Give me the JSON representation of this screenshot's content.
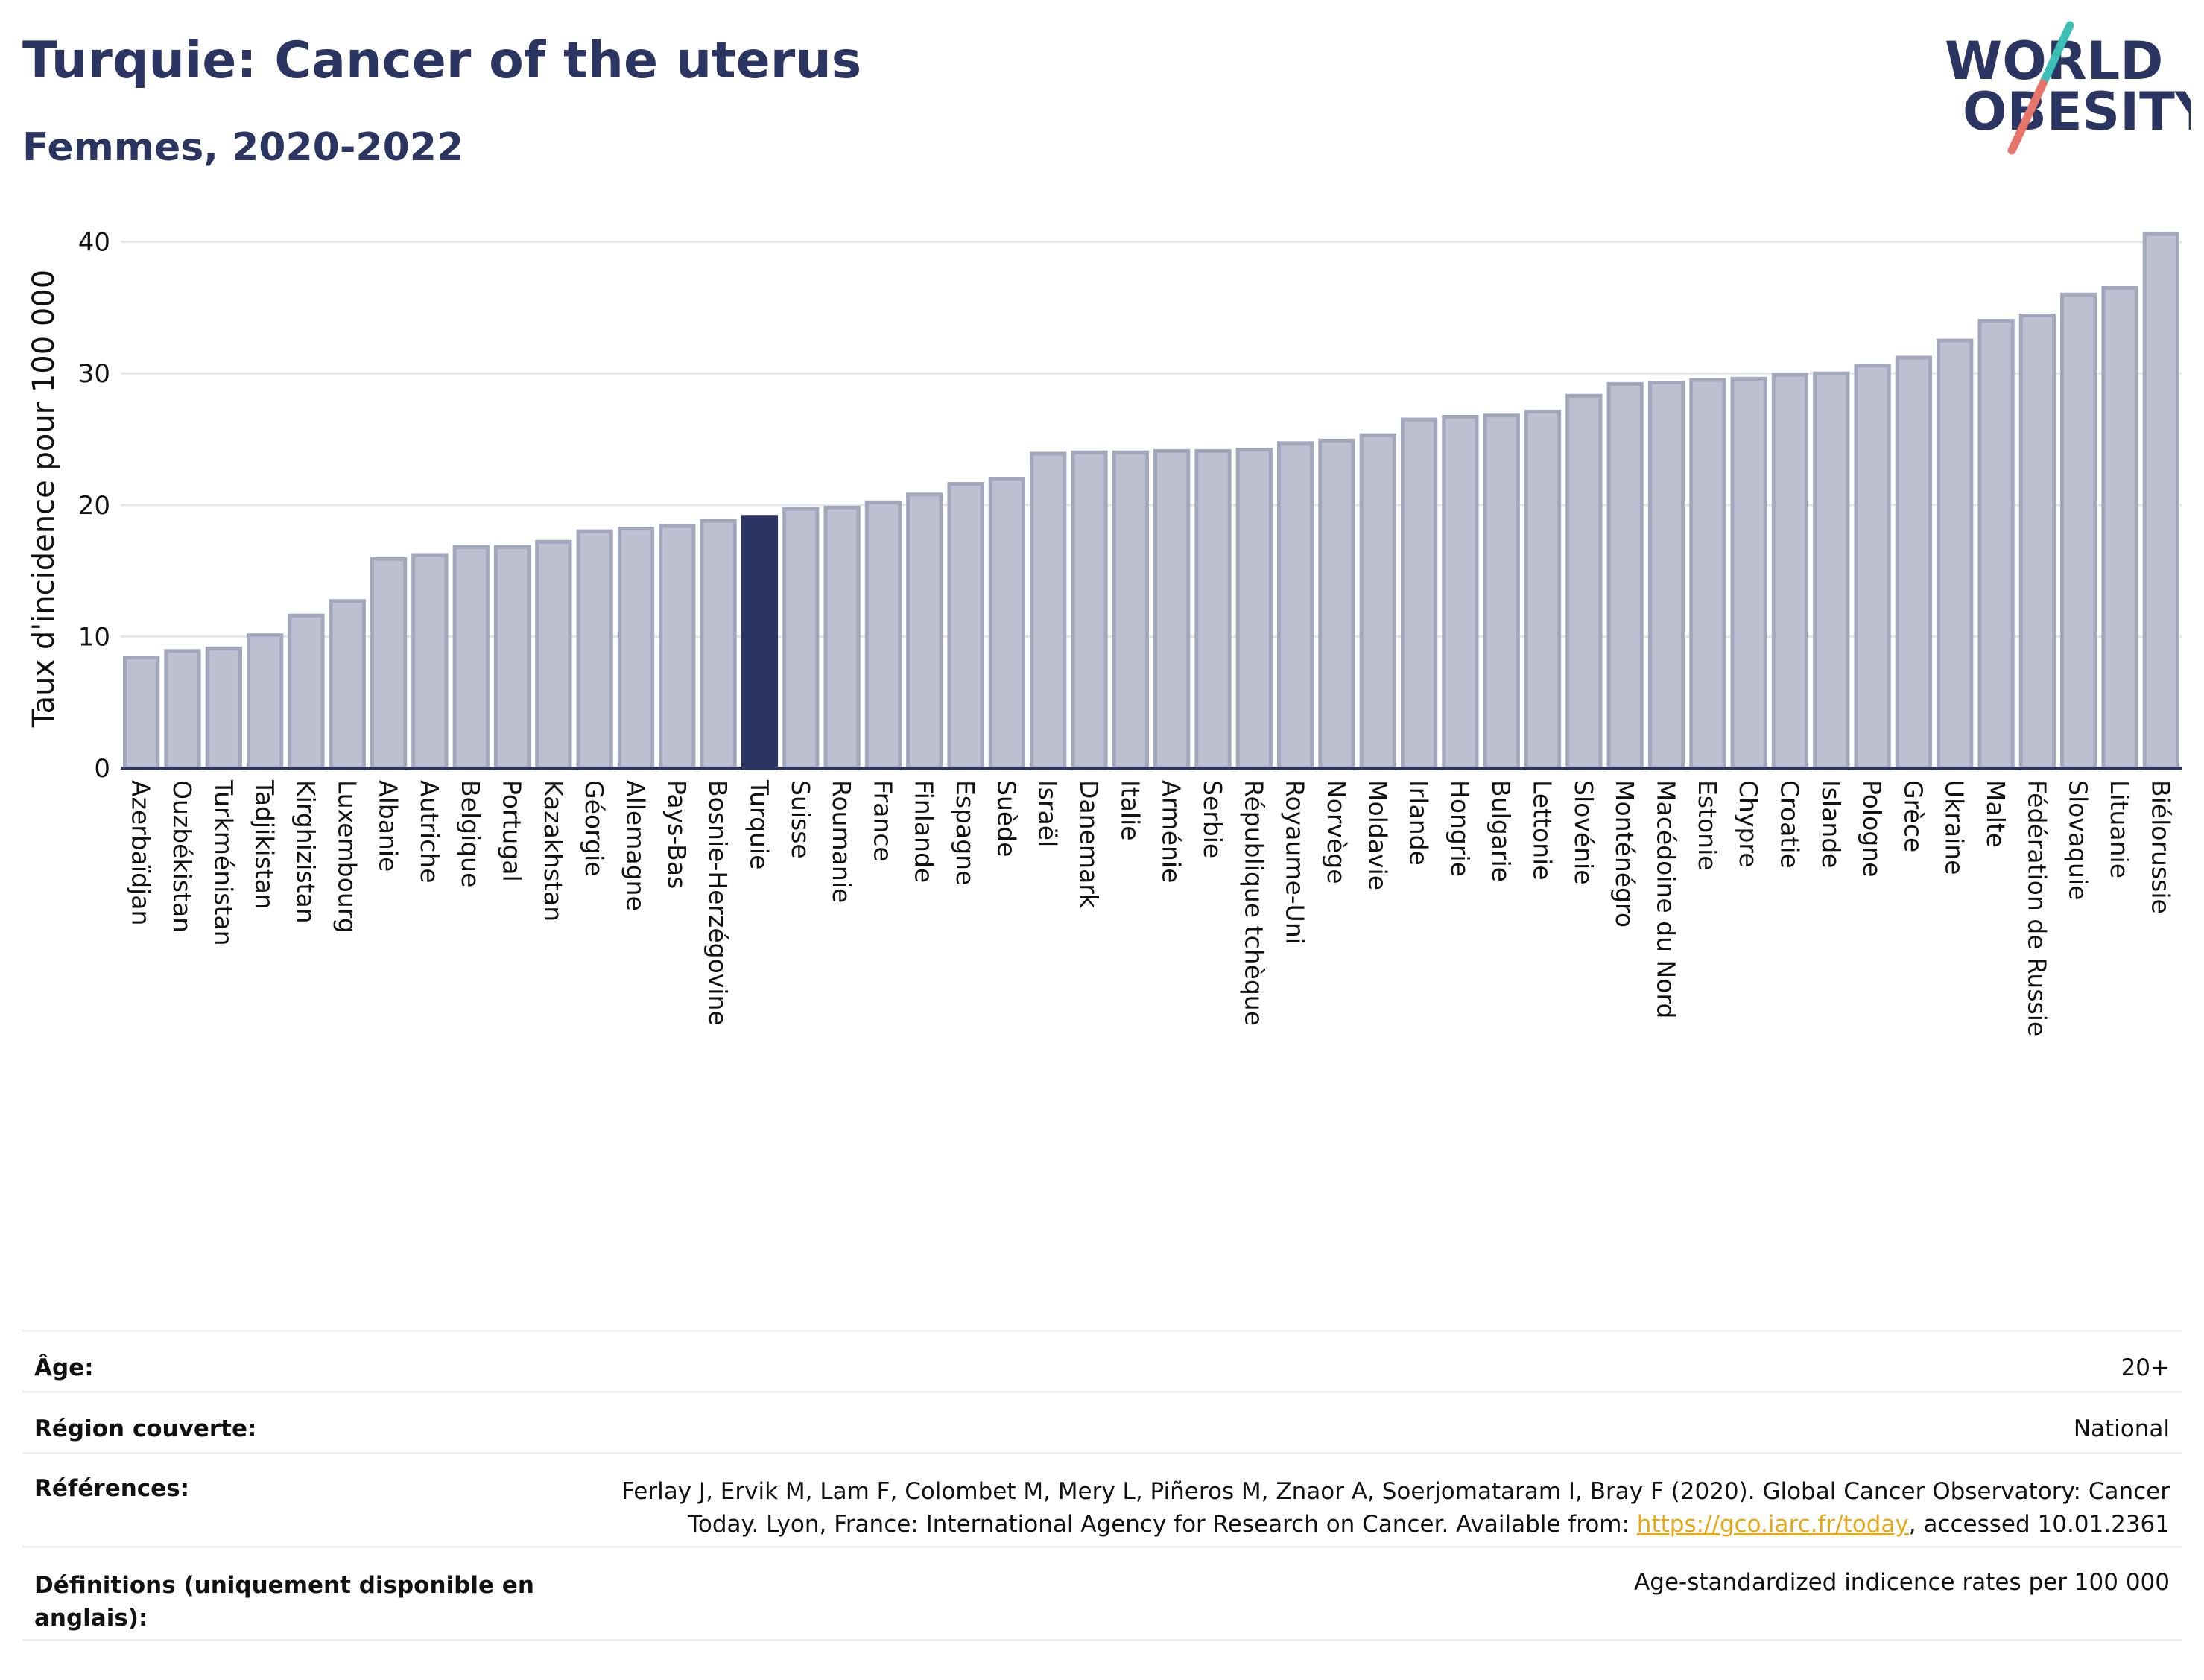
{
  "header": {
    "title": "Turquie: Cancer of the uterus",
    "subtitle": "Femmes, 2020-2022"
  },
  "logo": {
    "line1": "WORLD",
    "line2": "OBESITY",
    "accent_teal": "#3bbfb6",
    "accent_coral": "#e8756a",
    "text_color": "#2b3561"
  },
  "colors": {
    "bar": "#bcc0d0",
    "bar_stroke": "#a2a7bc",
    "highlight": "#2b3561",
    "grid": "#e4e6ec",
    "axis": "#2b3561"
  },
  "chart_data": {
    "type": "bar",
    "ylabel": "Taux d'incidence pour 100 000",
    "ylim": [
      0,
      41
    ],
    "yticks": [
      0,
      10,
      20,
      30,
      40
    ],
    "highlight": "Turquie",
    "categories": [
      "Azerbaïdjan",
      "Ouzbékistan",
      "Turkménistan",
      "Tadjikistan",
      "Kirghizistan",
      "Luxembourg",
      "Albanie",
      "Autriche",
      "Belgique",
      "Portugal",
      "Kazakhstan",
      "Géorgie",
      "Allemagne",
      "Pays-Bas",
      "Bosnie-Herzégovine",
      "Turquie",
      "Suisse",
      "Roumanie",
      "France",
      "Finlande",
      "Espagne",
      "Suède",
      "Israël",
      "Danemark",
      "Italie",
      "Arménie",
      "Serbie",
      "République tchèque",
      "Royaume-Uni",
      "Norvège",
      "Moldavie",
      "Irlande",
      "Hongrie",
      "Bulgarie",
      "Lettonie",
      "Slovénie",
      "Monténégro",
      "Macédoine du Nord",
      "Estonie",
      "Chypre",
      "Croatie",
      "Islande",
      "Pologne",
      "Grèce",
      "Ukraine",
      "Malte",
      "Fédération de Russie",
      "Slovaquie",
      "Lituanie",
      "Biélorussie"
    ],
    "values": [
      8.4,
      8.9,
      9.1,
      10.1,
      11.6,
      12.7,
      15.9,
      16.2,
      16.8,
      16.8,
      17.2,
      18.0,
      18.2,
      18.4,
      18.8,
      19.1,
      19.7,
      19.8,
      20.2,
      20.8,
      21.6,
      22.0,
      23.9,
      24.0,
      24.0,
      24.1,
      24.1,
      24.2,
      24.7,
      24.9,
      25.3,
      26.5,
      26.7,
      26.8,
      27.1,
      28.3,
      29.2,
      29.3,
      29.5,
      29.6,
      29.9,
      30.0,
      30.6,
      31.2,
      32.5,
      34.0,
      34.4,
      36.0,
      36.5,
      40.6
    ]
  },
  "info": {
    "age": {
      "label": "Âge:",
      "value": "20+"
    },
    "region": {
      "label": "Région couverte:",
      "value": "National"
    },
    "references": {
      "label": "Références:",
      "line1": "Ferlay J, Ervik M, Lam F, Colombet M, Mery L, Piñeros M, Znaor A, Soerjomataram I, Bray F (2020). Global Cancer Observatory: Cancer",
      "line2_pre": "Today. Lyon, France: International Agency for Research on Cancer. Available from: ",
      "link": "https://gco.iarc.fr/today",
      "line2_post": ", accessed 10.01.2361"
    },
    "definitions": {
      "label_line1": "Définitions (uniquement disponible en",
      "label_line2": "anglais):",
      "value": "Age-standardized indicence rates per 100 000"
    }
  }
}
